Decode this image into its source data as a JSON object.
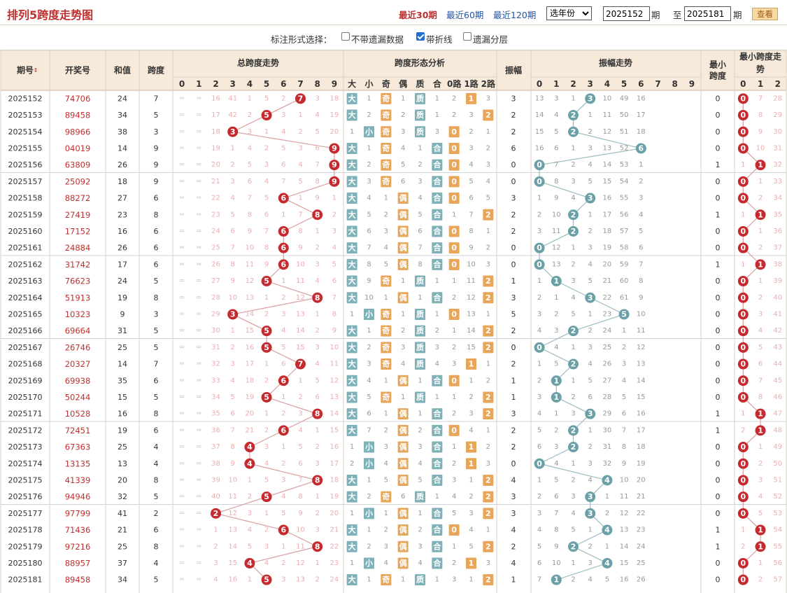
{
  "title": "排列5跨度走势图",
  "quick_links": [
    "最近30期",
    "最近60期",
    "最近120期"
  ],
  "year_select": "选年份",
  "period_from": "2025152",
  "period_to": "2025181",
  "period_label": "期",
  "to_label": "至",
  "view_button": "查看",
  "option_label": "标注形式选择：",
  "options": [
    {
      "label": "不带遗漏数据",
      "checked": false
    },
    {
      "label": "带折线",
      "checked": true
    },
    {
      "label": "遗漏分层",
      "checked": false
    }
  ],
  "headers": {
    "period": "期号",
    "sort_icon": "sort-updown-icon",
    "number": "开奖号",
    "sum": "和值",
    "span": "跨度",
    "span_trend": "总跨度走势",
    "shape": "跨度形态分析",
    "amp": "振幅",
    "amp_trend": "振幅走势",
    "min_span": "最小跨度",
    "min_trend": "最小跨度走势",
    "digits": [
      "0",
      "1",
      "2",
      "3",
      "4",
      "5",
      "6",
      "7",
      "8",
      "9"
    ],
    "shape_cols": [
      "大",
      "小",
      "奇",
      "偶",
      "质",
      "合",
      "0路",
      "1路",
      "2路"
    ],
    "min_digits": [
      "0",
      "1",
      "2"
    ]
  },
  "colors": {
    "accent": "#c0302e",
    "header_bg": "#f7eadb",
    "ball_red": "#c42a2e",
    "ball_teal": "#6aa0a6",
    "shape_teal": "#7fb1b8",
    "shape_orange": "#e7a659",
    "faint": "#eaaeb0",
    "zero": "#c8c8c8"
  },
  "rows": [
    {
      "p": "2025152",
      "n": "74706",
      "s": 24,
      "k": 7,
      "t": [
        "═",
        "═",
        "16",
        "41",
        "1",
        "5",
        "2",
        "7",
        "3",
        "18"
      ],
      "sh": [
        "大",
        "1",
        "奇",
        "1",
        "质",
        "1",
        "2",
        "1",
        "3"
      ],
      "a": 3,
      "at": [
        "13",
        "3",
        "1",
        "3",
        "10",
        "49",
        "16",
        "",
        "",
        ""
      ],
      "m": 0,
      "mt": [
        "0",
        "7",
        "28"
      ]
    },
    {
      "p": "2025153",
      "n": "89458",
      "s": 34,
      "k": 5,
      "t": [
        "═",
        "═",
        "17",
        "42",
        "2",
        "5",
        "3",
        "1",
        "4",
        "19"
      ],
      "sh": [
        "大",
        "2",
        "奇",
        "2",
        "质",
        "1",
        "2",
        "3",
        "2"
      ],
      "a": 2,
      "at": [
        "14",
        "4",
        "2",
        "1",
        "11",
        "50",
        "17",
        "",
        "",
        ""
      ],
      "m": 0,
      "mt": [
        "0",
        "8",
        "29"
      ]
    },
    {
      "p": "2025154",
      "n": "98966",
      "s": 38,
      "k": 3,
      "t": [
        "═",
        "═",
        "18",
        "3",
        "3",
        "1",
        "4",
        "2",
        "5",
        "20"
      ],
      "sh": [
        "1",
        "小",
        "奇",
        "3",
        "质",
        "3",
        "0",
        "2",
        "1"
      ],
      "a": 2,
      "at": [
        "15",
        "5",
        "2",
        "2",
        "12",
        "51",
        "18",
        "",
        "",
        ""
      ],
      "m": 0,
      "mt": [
        "0",
        "9",
        "30"
      ]
    },
    {
      "p": "2025155",
      "n": "04019",
      "s": 14,
      "k": 9,
      "t": [
        "═",
        "═",
        "19",
        "1",
        "4",
        "2",
        "5",
        "3",
        "6",
        "9"
      ],
      "sh": [
        "大",
        "1",
        "奇",
        "4",
        "1",
        "合",
        "0",
        "3",
        "2"
      ],
      "a": 6,
      "at": [
        "16",
        "6",
        "1",
        "3",
        "13",
        "52",
        "6",
        "",
        "",
        ""
      ],
      "m": 0,
      "mt": [
        "0",
        "10",
        "31"
      ]
    },
    {
      "p": "2025156",
      "n": "63809",
      "s": 26,
      "k": 9,
      "t": [
        "═",
        "═",
        "20",
        "2",
        "5",
        "3",
        "6",
        "4",
        "7",
        "9"
      ],
      "sh": [
        "大",
        "2",
        "奇",
        "5",
        "2",
        "合",
        "0",
        "4",
        "3"
      ],
      "a": 0,
      "at": [
        "0",
        "7",
        "2",
        "4",
        "14",
        "53",
        "1",
        "",
        "",
        ""
      ],
      "m": 1,
      "mt": [
        "1",
        "1",
        "32"
      ]
    },
    {
      "p": "2025157",
      "n": "25092",
      "s": 18,
      "k": 9,
      "t": [
        "═",
        "═",
        "21",
        "3",
        "6",
        "4",
        "7",
        "5",
        "8",
        "9"
      ],
      "sh": [
        "大",
        "3",
        "奇",
        "6",
        "3",
        "合",
        "0",
        "5",
        "4"
      ],
      "a": 0,
      "at": [
        "0",
        "8",
        "3",
        "5",
        "15",
        "54",
        "2",
        "",
        "",
        ""
      ],
      "m": 0,
      "mt": [
        "0",
        "1",
        "33"
      ]
    },
    {
      "p": "2025158",
      "n": "88272",
      "s": 27,
      "k": 6,
      "t": [
        "═",
        "═",
        "22",
        "4",
        "7",
        "5",
        "6",
        "1",
        "9",
        "1"
      ],
      "sh": [
        "大",
        "4",
        "1",
        "偶",
        "4",
        "合",
        "0",
        "6",
        "5"
      ],
      "a": 3,
      "at": [
        "1",
        "9",
        "4",
        "3",
        "16",
        "55",
        "3",
        "",
        "",
        ""
      ],
      "m": 0,
      "mt": [
        "0",
        "2",
        "34"
      ]
    },
    {
      "p": "2025159",
      "n": "27419",
      "s": 23,
      "k": 8,
      "t": [
        "═",
        "═",
        "23",
        "5",
        "8",
        "6",
        "1",
        "7",
        "8",
        "2"
      ],
      "sh": [
        "大",
        "5",
        "2",
        "偶",
        "5",
        "合",
        "1",
        "7",
        "2"
      ],
      "a": 2,
      "at": [
        "2",
        "10",
        "2",
        "1",
        "17",
        "56",
        "4",
        "",
        "",
        ""
      ],
      "m": 1,
      "mt": [
        "1",
        "1",
        "35"
      ]
    },
    {
      "p": "2025160",
      "n": "17152",
      "s": 16,
      "k": 6,
      "t": [
        "═",
        "═",
        "24",
        "6",
        "9",
        "7",
        "6",
        "8",
        "1",
        "3"
      ],
      "sh": [
        "大",
        "6",
        "3",
        "偶",
        "6",
        "合",
        "0",
        "8",
        "1"
      ],
      "a": 2,
      "at": [
        "3",
        "11",
        "2",
        "2",
        "18",
        "57",
        "5",
        "",
        "",
        ""
      ],
      "m": 0,
      "mt": [
        "0",
        "1",
        "36"
      ]
    },
    {
      "p": "2025161",
      "n": "24884",
      "s": 26,
      "k": 6,
      "t": [
        "═",
        "═",
        "25",
        "7",
        "10",
        "8",
        "6",
        "9",
        "2",
        "4"
      ],
      "sh": [
        "大",
        "7",
        "4",
        "偶",
        "7",
        "合",
        "0",
        "9",
        "2"
      ],
      "a": 0,
      "at": [
        "0",
        "12",
        "1",
        "3",
        "19",
        "58",
        "6",
        "",
        "",
        ""
      ],
      "m": 0,
      "mt": [
        "0",
        "2",
        "37"
      ]
    },
    {
      "p": "2025162",
      "n": "31742",
      "s": 17,
      "k": 6,
      "t": [
        "═",
        "═",
        "26",
        "8",
        "11",
        "9",
        "6",
        "10",
        "3",
        "5"
      ],
      "sh": [
        "大",
        "8",
        "5",
        "偶",
        "8",
        "合",
        "0",
        "10",
        "3"
      ],
      "a": 0,
      "at": [
        "0",
        "13",
        "2",
        "4",
        "20",
        "59",
        "7",
        "",
        "",
        ""
      ],
      "m": 1,
      "mt": [
        "1",
        "1",
        "38"
      ]
    },
    {
      "p": "2025163",
      "n": "76623",
      "s": 24,
      "k": 5,
      "t": [
        "═",
        "═",
        "27",
        "9",
        "12",
        "5",
        "1",
        "11",
        "4",
        "6"
      ],
      "sh": [
        "大",
        "9",
        "奇",
        "1",
        "质",
        "1",
        "1",
        "11",
        "2"
      ],
      "a": 1,
      "at": [
        "1",
        "1",
        "3",
        "5",
        "21",
        "60",
        "8",
        "",
        "",
        ""
      ],
      "m": 0,
      "mt": [
        "0",
        "1",
        "39"
      ]
    },
    {
      "p": "2025164",
      "n": "51913",
      "s": 19,
      "k": 8,
      "t": [
        "═",
        "═",
        "28",
        "10",
        "13",
        "1",
        "2",
        "12",
        "8",
        "7"
      ],
      "sh": [
        "大",
        "10",
        "1",
        "偶",
        "1",
        "合",
        "2",
        "12",
        "2"
      ],
      "a": 3,
      "at": [
        "2",
        "1",
        "4",
        "3",
        "22",
        "61",
        "9",
        "",
        "",
        ""
      ],
      "m": 0,
      "mt": [
        "0",
        "2",
        "40"
      ]
    },
    {
      "p": "2025165",
      "n": "10323",
      "s": 9,
      "k": 3,
      "t": [
        "═",
        "═",
        "29",
        "3",
        "14",
        "2",
        "3",
        "13",
        "1",
        "8"
      ],
      "sh": [
        "1",
        "小",
        "奇",
        "1",
        "质",
        "1",
        "0",
        "13",
        "1"
      ],
      "a": 5,
      "at": [
        "3",
        "2",
        "5",
        "1",
        "23",
        "5",
        "10",
        "",
        "",
        ""
      ],
      "m": 0,
      "mt": [
        "0",
        "3",
        "41"
      ]
    },
    {
      "p": "2025166",
      "n": "69664",
      "s": 31,
      "k": 5,
      "t": [
        "═",
        "═",
        "30",
        "1",
        "15",
        "5",
        "4",
        "14",
        "2",
        "9"
      ],
      "sh": [
        "大",
        "1",
        "奇",
        "2",
        "质",
        "2",
        "1",
        "14",
        "2"
      ],
      "a": 2,
      "at": [
        "4",
        "3",
        "2",
        "2",
        "24",
        "1",
        "11",
        "",
        "",
        ""
      ],
      "m": 0,
      "mt": [
        "0",
        "4",
        "42"
      ]
    },
    {
      "p": "2025167",
      "n": "26746",
      "s": 25,
      "k": 5,
      "t": [
        "═",
        "═",
        "31",
        "2",
        "16",
        "5",
        "5",
        "15",
        "3",
        "10"
      ],
      "sh": [
        "大",
        "2",
        "奇",
        "3",
        "质",
        "3",
        "2",
        "15",
        "2"
      ],
      "a": 0,
      "at": [
        "0",
        "4",
        "1",
        "3",
        "25",
        "2",
        "12",
        "",
        "",
        ""
      ],
      "m": 0,
      "mt": [
        "0",
        "5",
        "43"
      ]
    },
    {
      "p": "2025168",
      "n": "20327",
      "s": 14,
      "k": 7,
      "t": [
        "═",
        "═",
        "32",
        "3",
        "17",
        "1",
        "6",
        "7",
        "4",
        "11"
      ],
      "sh": [
        "大",
        "3",
        "奇",
        "4",
        "质",
        "4",
        "3",
        "1",
        "1"
      ],
      "a": 2,
      "at": [
        "1",
        "5",
        "2",
        "4",
        "26",
        "3",
        "13",
        "",
        "",
        ""
      ],
      "m": 0,
      "mt": [
        "0",
        "6",
        "44"
      ]
    },
    {
      "p": "2025169",
      "n": "69938",
      "s": 35,
      "k": 6,
      "t": [
        "═",
        "═",
        "33",
        "4",
        "18",
        "2",
        "6",
        "1",
        "5",
        "12"
      ],
      "sh": [
        "大",
        "4",
        "1",
        "偶",
        "1",
        "合",
        "0",
        "1",
        "2"
      ],
      "a": 1,
      "at": [
        "2",
        "1",
        "1",
        "5",
        "27",
        "4",
        "14",
        "",
        "",
        ""
      ],
      "m": 0,
      "mt": [
        "0",
        "7",
        "45"
      ]
    },
    {
      "p": "2025170",
      "n": "50244",
      "s": 15,
      "k": 5,
      "t": [
        "═",
        "═",
        "34",
        "5",
        "19",
        "5",
        "1",
        "2",
        "6",
        "13"
      ],
      "sh": [
        "大",
        "5",
        "奇",
        "1",
        "质",
        "1",
        "1",
        "2",
        "2"
      ],
      "a": 1,
      "at": [
        "3",
        "1",
        "2",
        "6",
        "28",
        "5",
        "15",
        "",
        "",
        ""
      ],
      "m": 0,
      "mt": [
        "0",
        "8",
        "46"
      ]
    },
    {
      "p": "2025171",
      "n": "10528",
      "s": 16,
      "k": 8,
      "t": [
        "═",
        "═",
        "35",
        "6",
        "20",
        "1",
        "2",
        "3",
        "8",
        "14"
      ],
      "sh": [
        "大",
        "6",
        "1",
        "偶",
        "1",
        "合",
        "2",
        "3",
        "2"
      ],
      "a": 3,
      "at": [
        "4",
        "1",
        "3",
        "3",
        "29",
        "6",
        "16",
        "",
        "",
        ""
      ],
      "m": 1,
      "mt": [
        "1",
        "1",
        "47"
      ]
    },
    {
      "p": "2025172",
      "n": "72451",
      "s": 19,
      "k": 6,
      "t": [
        "═",
        "═",
        "36",
        "7",
        "21",
        "2",
        "6",
        "4",
        "1",
        "15"
      ],
      "sh": [
        "大",
        "7",
        "2",
        "偶",
        "2",
        "合",
        "0",
        "4",
        "1"
      ],
      "a": 2,
      "at": [
        "5",
        "2",
        "2",
        "1",
        "30",
        "7",
        "17",
        "",
        "",
        ""
      ],
      "m": 1,
      "mt": [
        "2",
        "1",
        "48"
      ]
    },
    {
      "p": "2025173",
      "n": "67363",
      "s": 25,
      "k": 4,
      "t": [
        "═",
        "═",
        "37",
        "8",
        "4",
        "3",
        "1",
        "5",
        "2",
        "16"
      ],
      "sh": [
        "1",
        "小",
        "3",
        "偶",
        "3",
        "合",
        "1",
        "1",
        "2"
      ],
      "a": 2,
      "at": [
        "6",
        "3",
        "2",
        "2",
        "31",
        "8",
        "18",
        "",
        "",
        ""
      ],
      "m": 0,
      "mt": [
        "0",
        "1",
        "49"
      ]
    },
    {
      "p": "2025174",
      "n": "13135",
      "s": 13,
      "k": 4,
      "t": [
        "═",
        "═",
        "38",
        "9",
        "4",
        "4",
        "2",
        "6",
        "3",
        "17"
      ],
      "sh": [
        "2",
        "小",
        "4",
        "偶",
        "4",
        "合",
        "2",
        "1",
        "3"
      ],
      "a": 0,
      "at": [
        "0",
        "4",
        "1",
        "3",
        "32",
        "9",
        "19",
        "",
        "",
        ""
      ],
      "m": 0,
      "mt": [
        "0",
        "2",
        "50"
      ]
    },
    {
      "p": "2025175",
      "n": "41339",
      "s": 20,
      "k": 8,
      "t": [
        "═",
        "═",
        "39",
        "10",
        "1",
        "5",
        "3",
        "7",
        "8",
        "18"
      ],
      "sh": [
        "大",
        "1",
        "5",
        "偶",
        "5",
        "合",
        "3",
        "1",
        "2"
      ],
      "a": 4,
      "at": [
        "1",
        "5",
        "2",
        "4",
        "4",
        "10",
        "20",
        "",
        "",
        ""
      ],
      "m": 0,
      "mt": [
        "0",
        "3",
        "51"
      ]
    },
    {
      "p": "2025176",
      "n": "94946",
      "s": 32,
      "k": 5,
      "t": [
        "═",
        "═",
        "40",
        "11",
        "2",
        "5",
        "4",
        "8",
        "1",
        "19"
      ],
      "sh": [
        "大",
        "2",
        "奇",
        "6",
        "质",
        "1",
        "4",
        "2",
        "2"
      ],
      "a": 3,
      "at": [
        "2",
        "6",
        "3",
        "3",
        "1",
        "11",
        "21",
        "",
        "",
        ""
      ],
      "m": 0,
      "mt": [
        "0",
        "4",
        "52"
      ]
    },
    {
      "p": "2025177",
      "n": "97799",
      "s": 41,
      "k": 2,
      "t": [
        "═",
        "═",
        "2",
        "12",
        "3",
        "1",
        "5",
        "9",
        "2",
        "20"
      ],
      "sh": [
        "1",
        "小",
        "1",
        "偶",
        "1",
        "合",
        "5",
        "3",
        "2"
      ],
      "a": 3,
      "at": [
        "3",
        "7",
        "4",
        "3",
        "2",
        "12",
        "22",
        "",
        "",
        ""
      ],
      "m": 0,
      "mt": [
        "0",
        "5",
        "53"
      ]
    },
    {
      "p": "2025178",
      "n": "71436",
      "s": 21,
      "k": 6,
      "t": [
        "═",
        "═",
        "1",
        "13",
        "4",
        "2",
        "6",
        "10",
        "3",
        "21"
      ],
      "sh": [
        "大",
        "1",
        "2",
        "偶",
        "2",
        "合",
        "0",
        "4",
        "1"
      ],
      "a": 4,
      "at": [
        "4",
        "8",
        "5",
        "1",
        "4",
        "13",
        "23",
        "",
        "",
        ""
      ],
      "m": 1,
      "mt": [
        "1",
        "1",
        "54"
      ]
    },
    {
      "p": "2025179",
      "n": "97216",
      "s": 25,
      "k": 8,
      "t": [
        "═",
        "═",
        "2",
        "14",
        "5",
        "3",
        "1",
        "11",
        "8",
        "22"
      ],
      "sh": [
        "大",
        "2",
        "3",
        "偶",
        "3",
        "合",
        "1",
        "5",
        "2"
      ],
      "a": 2,
      "at": [
        "5",
        "9",
        "2",
        "2",
        "1",
        "14",
        "24",
        "",
        "",
        ""
      ],
      "m": 1,
      "mt": [
        "2",
        "1",
        "55"
      ]
    },
    {
      "p": "2025180",
      "n": "88957",
      "s": 37,
      "k": 4,
      "t": [
        "═",
        "═",
        "3",
        "15",
        "4",
        "4",
        "2",
        "12",
        "1",
        "23"
      ],
      "sh": [
        "1",
        "小",
        "4",
        "偶",
        "4",
        "合",
        "2",
        "1",
        "3"
      ],
      "a": 4,
      "at": [
        "6",
        "10",
        "1",
        "3",
        "4",
        "15",
        "25",
        "",
        "",
        ""
      ],
      "m": 0,
      "mt": [
        "0",
        "1",
        "56"
      ]
    },
    {
      "p": "2025181",
      "n": "89458",
      "s": 34,
      "k": 5,
      "t": [
        "═",
        "═",
        "4",
        "16",
        "1",
        "5",
        "3",
        "13",
        "2",
        "24"
      ],
      "sh": [
        "大",
        "1",
        "奇",
        "1",
        "质",
        "1",
        "3",
        "1",
        "2"
      ],
      "a": 1,
      "at": [
        "7",
        "1",
        "2",
        "4",
        "5",
        "16",
        "26",
        "",
        "",
        ""
      ],
      "m": 0,
      "mt": [
        "0",
        "2",
        "57"
      ]
    }
  ]
}
